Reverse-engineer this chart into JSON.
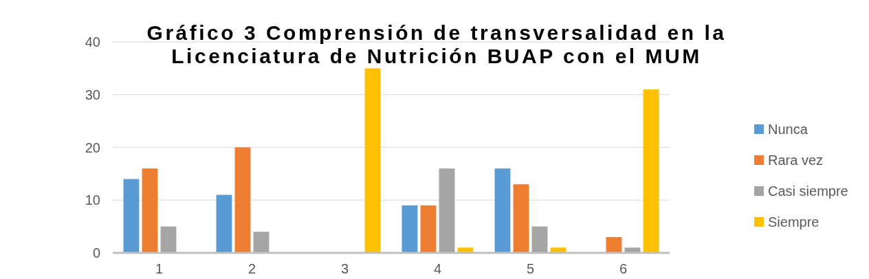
{
  "chart_data": {
    "type": "bar",
    "title": "Gráfico 3 Comprensión de transversalidad en la Licenciatura de Nutrición BUAP con el MUM",
    "categories": [
      "1",
      "2",
      "3",
      "4",
      "5",
      "6"
    ],
    "series": [
      {
        "name": "Nunca",
        "color": "#5b9bd5",
        "values": [
          14,
          11,
          null,
          9,
          16,
          null
        ]
      },
      {
        "name": "Rara vez",
        "color": "#ed7d31",
        "values": [
          16,
          20,
          null,
          9,
          13,
          3
        ]
      },
      {
        "name": "Casi siempre",
        "color": "#a5a5a5",
        "values": [
          5,
          4,
          null,
          16,
          5,
          1
        ]
      },
      {
        "name": "Siempre",
        "color": "#ffc000",
        "values": [
          null,
          null,
          35,
          1,
          1,
          31
        ]
      }
    ],
    "ylim": [
      0,
      40
    ],
    "yticks": [
      0,
      10,
      20,
      30,
      40
    ],
    "grid": "y",
    "legend": "right"
  }
}
